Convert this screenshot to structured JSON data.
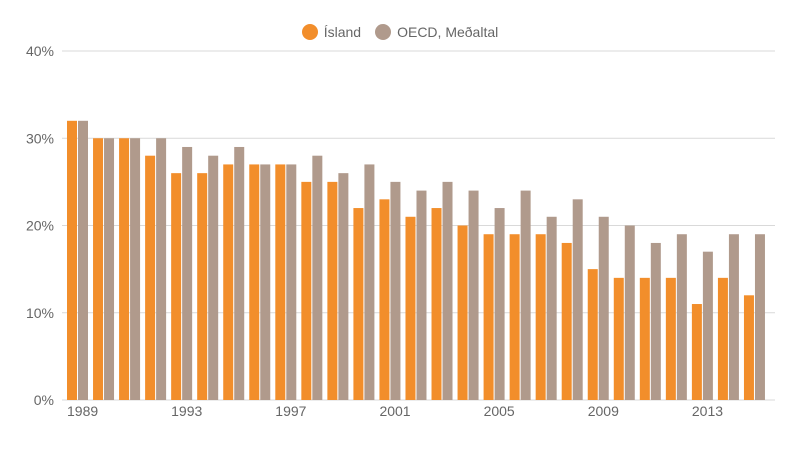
{
  "chart_data": {
    "type": "bar",
    "title": "",
    "xlabel": "",
    "ylabel": "",
    "ylim": [
      0,
      40
    ],
    "yticks": [
      "0%",
      "10%",
      "20%",
      "30%",
      "40%"
    ],
    "xtick_labels": [
      "1989",
      "1993",
      "1997",
      "2001",
      "2005",
      "2009",
      "2013"
    ],
    "grid": true,
    "legend_position": "top",
    "categories": [
      "1989",
      "1990",
      "1991",
      "1992",
      "1993",
      "1994",
      "1995",
      "1996",
      "1997",
      "1998",
      "1999",
      "2000",
      "2001",
      "2002",
      "2003",
      "2004",
      "2005",
      "2006",
      "2007",
      "2008",
      "2009",
      "2010",
      "2011",
      "2012",
      "2013",
      "2014",
      "2015"
    ],
    "series": [
      {
        "name": "Ísland",
        "color": "#f28e2b",
        "values": [
          32,
          30,
          30,
          28,
          26,
          26,
          27,
          27,
          27,
          25,
          25,
          22,
          23,
          21,
          22,
          20,
          19,
          19,
          19,
          18,
          15,
          14,
          14,
          14,
          11,
          14,
          12
        ]
      },
      {
        "name": "OECD, Meðaltal",
        "color": "#b09a8c",
        "values": [
          32,
          30,
          30,
          30,
          29,
          28,
          29,
          27,
          27,
          28,
          26,
          27,
          25,
          24,
          25,
          24,
          22,
          24,
          21,
          23,
          21,
          20,
          18,
          19,
          17,
          19,
          19
        ]
      }
    ]
  }
}
